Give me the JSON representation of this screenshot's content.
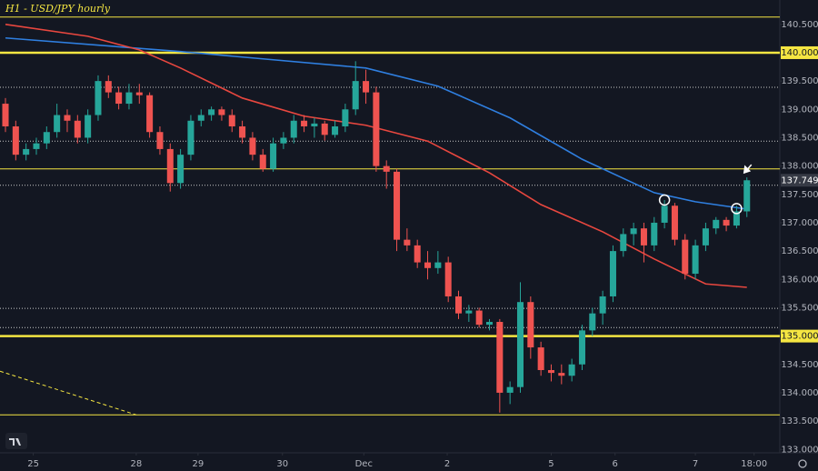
{
  "chart_data": {
    "type": "candlestick",
    "title": "H1 - USD/JPY hourly",
    "up_color": "#26a69a",
    "down_color": "#ef5350",
    "background": "#131722",
    "xlim": [
      -0.53,
      75.2
    ],
    "ylim": [
      132.94,
      140.93
    ],
    "xticks": [
      {
        "value": 2.7,
        "label": "25"
      },
      {
        "value": 12.7,
        "label": "28"
      },
      {
        "value": 18.7,
        "label": "29"
      },
      {
        "value": 26.9,
        "label": "30"
      },
      {
        "value": 34.8,
        "label": "Dec"
      },
      {
        "value": 42.9,
        "label": "2"
      },
      {
        "value": 53.0,
        "label": "5"
      },
      {
        "value": 59.2,
        "label": "6"
      },
      {
        "value": 67.0,
        "label": "7"
      },
      {
        "value": 72.7,
        "label": "18:00"
      }
    ],
    "yticks": [
      {
        "value": 133,
        "label": "133.000"
      },
      {
        "value": 133.5,
        "label": "133.500"
      },
      {
        "value": 134,
        "label": "134.000"
      },
      {
        "value": 134.5,
        "label": "134.500"
      },
      {
        "value": 135,
        "label": "135.000"
      },
      {
        "value": 135.5,
        "label": "135.500"
      },
      {
        "value": 136,
        "label": "136.000"
      },
      {
        "value": 136.5,
        "label": "136.500"
      },
      {
        "value": 137,
        "label": "137.000"
      },
      {
        "value": 137.5,
        "label": "137.500"
      },
      {
        "value": 138,
        "label": "138.000"
      },
      {
        "value": 138.5,
        "label": "138.500"
      },
      {
        "value": 139,
        "label": "139.000"
      },
      {
        "value": 139.5,
        "label": "139.500"
      },
      {
        "value": 140,
        "label": "140.000"
      },
      {
        "value": 140.5,
        "label": "140.500"
      }
    ],
    "open": [
      139.1,
      138.7,
      138.2,
      138.3,
      138.4,
      138.6,
      138.9,
      138.8,
      138.5,
      138.9,
      139.5,
      139.3,
      139.1,
      139.3,
      139.25,
      138.6,
      138.3,
      137.7,
      138.2,
      138.8,
      138.9,
      139.0,
      138.9,
      138.7,
      138.5,
      138.2,
      137.95,
      138.4,
      138.5,
      138.8,
      138.7,
      138.75,
      138.55,
      138.7,
      139.0,
      139.5,
      139.3,
      138.0,
      137.9,
      136.7,
      136.6,
      136.3,
      136.2,
      136.3,
      135.7,
      135.4,
      135.45,
      135.2,
      135.25,
      134.0,
      134.1,
      135.6,
      134.8,
      134.4,
      134.35,
      134.3,
      134.5,
      135.1,
      135.4,
      135.7,
      136.5,
      136.8,
      136.9,
      136.6,
      137.0,
      137.3,
      136.7,
      136.1,
      136.6,
      136.9,
      137.05,
      136.95,
      137.2
    ],
    "high": [
      139.2,
      138.8,
      138.4,
      138.5,
      138.7,
      139.1,
      139.0,
      138.9,
      139.0,
      139.6,
      139.6,
      139.4,
      139.45,
      139.45,
      139.3,
      138.7,
      138.4,
      138.3,
      138.9,
      139.0,
      139.05,
      139.05,
      139.0,
      138.8,
      138.6,
      138.3,
      138.5,
      138.6,
      138.9,
      138.9,
      138.85,
      138.8,
      138.8,
      139.1,
      139.85,
      139.7,
      139.4,
      138.1,
      137.95,
      136.9,
      136.7,
      136.5,
      136.5,
      136.4,
      135.8,
      135.55,
      135.5,
      135.3,
      135.3,
      134.2,
      135.95,
      135.7,
      134.9,
      134.5,
      134.5,
      134.6,
      135.2,
      135.5,
      135.8,
      136.6,
      136.9,
      137.0,
      137.0,
      137.1,
      137.4,
      137.35,
      136.8,
      136.7,
      137.0,
      137.1,
      137.1,
      137.3,
      137.8
    ],
    "low": [
      138.6,
      138.1,
      138.1,
      138.2,
      138.3,
      138.5,
      138.6,
      138.4,
      138.4,
      138.8,
      139.2,
      139.0,
      139.0,
      139.1,
      138.5,
      138.2,
      137.55,
      137.6,
      138.1,
      138.7,
      138.8,
      138.8,
      138.6,
      138.4,
      138.1,
      137.9,
      137.9,
      138.3,
      138.4,
      138.6,
      138.5,
      138.45,
      138.5,
      138.6,
      138.9,
      139.1,
      137.9,
      137.6,
      136.5,
      136.5,
      136.2,
      136.0,
      136.1,
      135.6,
      135.3,
      135.25,
      135.15,
      135.1,
      133.65,
      133.8,
      134.0,
      134.6,
      134.3,
      134.2,
      134.15,
      134.2,
      134.4,
      135.0,
      135.2,
      135.6,
      136.4,
      136.6,
      136.3,
      136.5,
      136.9,
      136.6,
      136.0,
      136.0,
      136.5,
      136.8,
      136.85,
      136.9,
      137.1
    ],
    "close": [
      138.7,
      138.2,
      138.3,
      138.4,
      138.6,
      138.9,
      138.8,
      138.5,
      138.9,
      139.5,
      139.3,
      139.1,
      139.3,
      139.25,
      138.6,
      138.3,
      137.7,
      138.2,
      138.8,
      138.9,
      139.0,
      138.9,
      138.7,
      138.5,
      138.2,
      137.95,
      138.4,
      138.5,
      138.8,
      138.7,
      138.75,
      138.55,
      138.7,
      139.0,
      139.5,
      139.3,
      138.0,
      137.9,
      136.7,
      136.6,
      136.3,
      136.2,
      136.3,
      135.7,
      135.4,
      135.45,
      135.2,
      135.25,
      134.0,
      134.1,
      135.6,
      134.8,
      134.4,
      134.35,
      134.3,
      134.5,
      135.1,
      135.4,
      135.7,
      136.5,
      136.8,
      136.9,
      136.6,
      137.0,
      137.3,
      136.7,
      136.1,
      136.6,
      136.9,
      137.05,
      136.95,
      137.2,
      137.749
    ],
    "lines": [
      {
        "color": "#2f7fe0",
        "x": [
          0,
          17,
          35,
          42,
          49,
          56,
          63,
          67,
          72
        ],
        "values": [
          140.26,
          140.02,
          139.73,
          139.41,
          138.85,
          138.12,
          137.53,
          137.37,
          137.24
        ]
      },
      {
        "color": "#e8473f",
        "x": [
          0,
          8,
          13,
          17,
          23,
          29,
          35,
          41,
          47,
          52,
          58,
          63,
          68,
          72
        ],
        "values": [
          140.5,
          140.29,
          140.05,
          139.73,
          139.2,
          138.88,
          138.72,
          138.44,
          137.88,
          137.32,
          136.84,
          136.36,
          135.92,
          135.86
        ]
      }
    ],
    "levels": [
      {
        "value": 140.63,
        "color": "#f5e642",
        "style": "thin"
      },
      {
        "value": 140.0,
        "color": "#f5e642",
        "style": "thick",
        "highlight": true
      },
      {
        "value": 137.95,
        "color": "#f5e642",
        "style": "thin"
      },
      {
        "value": 135.0,
        "color": "#f5e642",
        "style": "thick",
        "highlight": true
      },
      {
        "value": 133.61,
        "color": "#f5e642",
        "style": "thin"
      },
      {
        "value": 139.39,
        "color": "#c8c8c8",
        "style": "dotted"
      },
      {
        "value": 138.44,
        "color": "#c8c8c8",
        "style": "dotted"
      },
      {
        "value": 137.66,
        "color": "#c8c8c8",
        "style": "dotted"
      },
      {
        "value": 135.49,
        "color": "#c8c8c8",
        "style": "dotted"
      },
      {
        "value": 135.15,
        "color": "#c8c8c8",
        "style": "dotted"
      }
    ],
    "trendline": {
      "color": "#f5e642",
      "x": [
        -0.53,
        12.7
      ],
      "values": [
        134.38,
        133.61
      ]
    },
    "markers": {
      "x": [
        64,
        71
      ],
      "values": [
        137.4,
        137.25
      ]
    }
  }
}
